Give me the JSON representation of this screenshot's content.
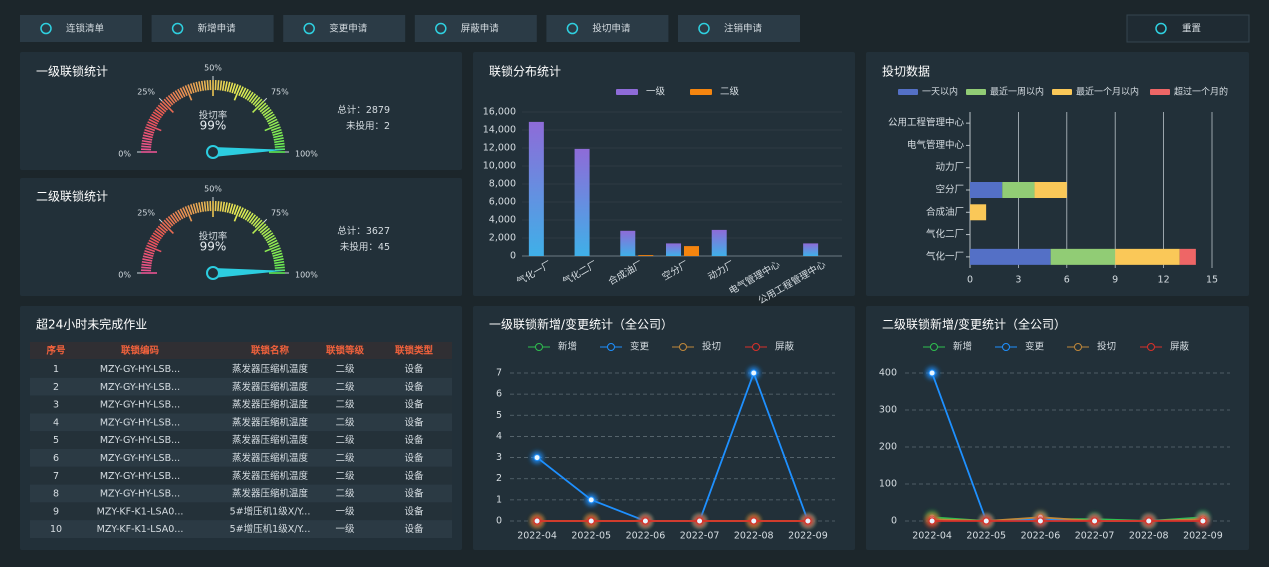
{
  "toolbar": {
    "buttons": [
      "连锁清单",
      "新增申请",
      "变更申请",
      "屏蔽申请",
      "投切申请",
      "注销申请"
    ],
    "reset": "重置"
  },
  "chart_data": [
    {
      "type": "gauge",
      "title": "一级联锁统计",
      "value": 99,
      "value_label": "99%",
      "value_name": "投切率",
      "lim": [
        0,
        100
      ],
      "ticks": [
        {
          "value": 0,
          "label": "0%"
        },
        {
          "value": 25,
          "label": "25%"
        },
        {
          "value": 50,
          "label": "50%"
        },
        {
          "value": 75,
          "label": "75%"
        },
        {
          "value": 100,
          "label": "100%"
        }
      ],
      "stats": [
        {
          "label": "总计：",
          "value": 2879
        },
        {
          "label": "未投用：",
          "value": 2
        }
      ]
    },
    {
      "type": "gauge",
      "title": "二级联锁统计",
      "value": 99,
      "value_label": "99%",
      "value_name": "投切率",
      "lim": [
        0,
        100
      ],
      "ticks": [
        {
          "value": 0,
          "label": "0%"
        },
        {
          "value": 25,
          "label": "25%"
        },
        {
          "value": 50,
          "label": "50%"
        },
        {
          "value": 75,
          "label": "75%"
        },
        {
          "value": 100,
          "label": "100%"
        }
      ],
      "stats": [
        {
          "label": "总计：",
          "value": 3627
        },
        {
          "label": "未投用：",
          "value": 45
        }
      ]
    },
    {
      "type": "bar",
      "title": "联锁分布统计",
      "categories": [
        "气化一厂",
        "气化二厂",
        "合成油厂",
        "空分厂",
        "动力厂",
        "电气管理中心",
        "公用工程管理中心"
      ],
      "series": [
        {
          "name": "一级",
          "color": "#8e6bd8",
          "values": [
            14900,
            11900,
            2800,
            1400,
            2900,
            0,
            1400
          ]
        },
        {
          "name": "二级",
          "color": "#f5850f",
          "values": [
            0,
            0,
            100,
            1100,
            0,
            0,
            0
          ]
        }
      ],
      "ylim": [
        0,
        16000
      ],
      "yticks": [
        0,
        {
          "value": 2000,
          "label": "2,000"
        },
        {
          "value": 4000,
          "label": "4,000"
        },
        {
          "value": 6000,
          "label": "6,000"
        },
        {
          "value": 8000,
          "label": "8,000"
        },
        {
          "value": 10000,
          "label": "10,000"
        },
        {
          "value": 12000,
          "label": "12,000"
        },
        {
          "value": 14000,
          "label": "14,000"
        },
        {
          "value": 16000,
          "label": "16,000"
        }
      ],
      "grid": true
    },
    {
      "type": "hbar",
      "title": "投切数据",
      "categories": [
        "气化一厂",
        "气化二厂",
        "合成油厂",
        "空分厂",
        "动力厂",
        "电气管理中心",
        "公用工程管理中心"
      ],
      "series": [
        {
          "name": "一天以内",
          "color": "#5470c6",
          "values": [
            5,
            0,
            0,
            2,
            0,
            0,
            0
          ]
        },
        {
          "name": "最近一周以内",
          "color": "#91cc75",
          "values": [
            4,
            0,
            0,
            2,
            0,
            0,
            0
          ]
        },
        {
          "name": "最近一个月以内",
          "color": "#fac858",
          "values": [
            4,
            0,
            1,
            2,
            0,
            0,
            0
          ]
        },
        {
          "name": "超过一个月的",
          "color": "#ee6666",
          "values": [
            1,
            0,
            0,
            0,
            0,
            0,
            0
          ]
        }
      ],
      "xlim": [
        0,
        15
      ],
      "xticks": [
        0,
        3,
        6,
        9,
        12,
        15
      ],
      "grid": true
    },
    {
      "type": "line",
      "title": "一级联锁新增/变更统计（全公司）",
      "categories": [
        "2022-04",
        "2022-05",
        "2022-06",
        "2022-07",
        "2022-08",
        "2022-09"
      ],
      "series": [
        {
          "name": "新增",
          "color": "#2fbf4f",
          "values": [
            0,
            0,
            0,
            0,
            0,
            0
          ]
        },
        {
          "name": "变更",
          "color": "#1e90ff",
          "values": [
            3,
            1,
            0,
            0,
            7,
            0
          ]
        },
        {
          "name": "投切",
          "color": "#c0883a",
          "values": [
            0,
            0,
            0,
            0,
            0,
            0
          ]
        },
        {
          "name": "屏蔽",
          "color": "#d8302a",
          "values": [
            0,
            0,
            0,
            0,
            0,
            0
          ]
        }
      ],
      "ylim": [
        0,
        7
      ],
      "yticks": [
        0,
        1,
        2,
        3,
        4,
        5,
        6,
        7
      ],
      "grid": true
    },
    {
      "type": "line",
      "title": "二级联锁新增/变更统计（全公司）",
      "categories": [
        "2022-04",
        "2022-05",
        "2022-06",
        "2022-07",
        "2022-08",
        "2022-09"
      ],
      "series": [
        {
          "name": "新增",
          "color": "#2fbf4f",
          "values": [
            10,
            0,
            5,
            5,
            0,
            10
          ]
        },
        {
          "name": "变更",
          "color": "#1e90ff",
          "values": [
            400,
            0,
            5,
            0,
            0,
            5
          ]
        },
        {
          "name": "投切",
          "color": "#c0883a",
          "values": [
            5,
            0,
            10,
            0,
            0,
            5
          ]
        },
        {
          "name": "屏蔽",
          "color": "#d8302a",
          "values": [
            0,
            0,
            0,
            0,
            0,
            0
          ]
        }
      ],
      "ylim": [
        0,
        400
      ],
      "yticks": [
        0,
        100,
        200,
        300,
        400
      ],
      "grid": true
    }
  ],
  "table": {
    "title": "超24小时未完成作业",
    "header": [
      "序号",
      "联锁编码",
      "联锁名称",
      "联锁等级",
      "联锁类型"
    ],
    "rows": [
      [
        1,
        "MZY-GY-HY-LSB...",
        "蒸发器压缩机温度",
        "二级",
        "设备"
      ],
      [
        2,
        "MZY-GY-HY-LSB...",
        "蒸发器压缩机温度",
        "二级",
        "设备"
      ],
      [
        3,
        "MZY-GY-HY-LSB...",
        "蒸发器压缩机温度",
        "二级",
        "设备"
      ],
      [
        4,
        "MZY-GY-HY-LSB...",
        "蒸发器压缩机温度",
        "二级",
        "设备"
      ],
      [
        5,
        "MZY-GY-HY-LSB...",
        "蒸发器压缩机温度",
        "二级",
        "设备"
      ],
      [
        6,
        "MZY-GY-HY-LSB...",
        "蒸发器压缩机温度",
        "二级",
        "设备"
      ],
      [
        7,
        "MZY-GY-HY-LSB...",
        "蒸发器压缩机温度",
        "二级",
        "设备"
      ],
      [
        8,
        "MZY-GY-HY-LSB...",
        "蒸发器压缩机温度",
        "二级",
        "设备"
      ],
      [
        9,
        "MZY-KF-K1-LSA0...",
        "5#增压机1级X/Y...",
        "一级",
        "设备"
      ],
      [
        10,
        "MZY-KF-K1-LSA0...",
        "5#增压机1级X/Y...",
        "一级",
        "设备"
      ]
    ]
  }
}
